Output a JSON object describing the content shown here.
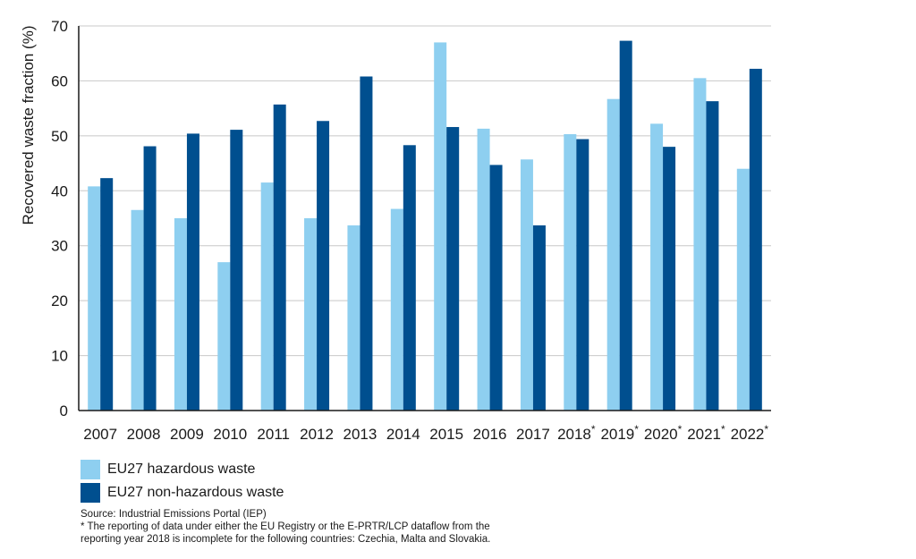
{
  "chart_data": {
    "type": "bar",
    "title": "",
    "xlabel": "",
    "ylabel": "Recovered waste fraction (%)",
    "ylim": [
      0,
      70
    ],
    "yticks": [
      0,
      10,
      20,
      30,
      40,
      50,
      60,
      70
    ],
    "grid": true,
    "categories": [
      "2007",
      "2008",
      "2009",
      "2010",
      "2011",
      "2012",
      "2013",
      "2014",
      "2015",
      "2016",
      "2017",
      "2018",
      "2019",
      "2020",
      "2021",
      "2022"
    ],
    "category_marks": [
      "",
      "",
      "",
      "",
      "",
      "",
      "",
      "",
      "",
      "",
      "",
      "*",
      "*",
      "*",
      "*",
      "*"
    ],
    "series": [
      {
        "name": "EU27 hazardous waste",
        "color": "#8ecff0",
        "values": [
          40.8,
          36.5,
          35.0,
          27.0,
          41.5,
          35.0,
          33.7,
          36.7,
          67.0,
          51.3,
          45.7,
          50.3,
          56.7,
          52.2,
          60.5,
          44.0
        ]
      },
      {
        "name": "EU27 non-hazardous waste",
        "color": "#004f8f",
        "values": [
          42.3,
          48.1,
          50.4,
          51.1,
          55.7,
          52.7,
          60.8,
          48.3,
          51.6,
          44.7,
          33.7,
          49.4,
          67.3,
          48.0,
          56.3,
          62.2
        ]
      }
    ],
    "legend_position": "bottom-left"
  },
  "notes": {
    "source": "Source: Industrial Emissions Portal (IEP)",
    "footnote_line1": "* The reporting of data under either the EU Registry or the E-PRTR/LCP dataflow from the",
    "footnote_line2": "reporting year 2018 is incomplete for the following countries: Czechia, Malta and Slovakia."
  },
  "colors": {
    "grid": "#c8c8c8",
    "axis": "#1a1a1a"
  }
}
